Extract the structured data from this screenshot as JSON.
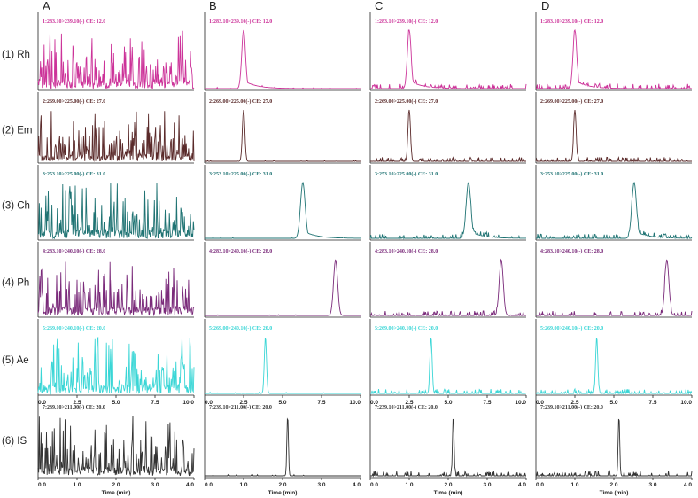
{
  "chart_data": {
    "type": "line",
    "title": "",
    "columns": [
      "A",
      "B",
      "C",
      "D"
    ],
    "xlabel": "Time (min)",
    "rows": [
      {
        "label": "(1) Rh",
        "trace": "1:283.10>239.10(-) CE: 12.0",
        "color": "#cc3399",
        "xlim": [
          0,
          10
        ],
        "xticks": [],
        "peak_rt": 2.5,
        "peak_width": 0.12,
        "tail": true
      },
      {
        "label": "(2) Em",
        "trace": "2:269.00>225.00(-) CE: 27.0",
        "color": "#5a2a2a",
        "xlim": [
          0,
          10
        ],
        "xticks": [],
        "peak_rt": 2.5,
        "peak_width": 0.08,
        "tail": false
      },
      {
        "label": "(3) Ch",
        "trace": "3:253.10>225.00(-) CE: 31.0",
        "color": "#1f7373",
        "xlim": [
          0,
          10
        ],
        "xticks": [],
        "peak_rt": 6.3,
        "peak_width": 0.15,
        "tail": true
      },
      {
        "label": "(4) Ph",
        "trace": "4:283.10>240.10(-) CE: 28.0",
        "color": "#7a2a7a",
        "xlim": [
          0,
          10
        ],
        "xticks": [],
        "peak_rt": 8.4,
        "peak_width": 0.13,
        "tail": false
      },
      {
        "label": "(5) Ae",
        "trace": "5:269.00>240.10(-) CE: 20.0",
        "color": "#3ad6d6",
        "xlim": [
          0,
          10
        ],
        "xticks": [
          0.0,
          2.5,
          5.0,
          7.5,
          10.0
        ],
        "xtick_labels": [
          "0.0",
          "2.5",
          "5.0",
          "7.5",
          "10.0"
        ],
        "peak_rt": 3.9,
        "peak_width": 0.07,
        "tail": false
      },
      {
        "label": "(6) IS",
        "trace": "7:239.10>211.00(-) CE: 20.0",
        "color": "#333333",
        "xlim": [
          0,
          4
        ],
        "xticks": [
          0.0,
          1.0,
          2.0,
          3.0,
          4.0
        ],
        "xtick_labels": [
          "0.0",
          "1.0",
          "2.0",
          "3.0",
          "4.0"
        ],
        "peak_rt": 2.13,
        "peak_width": 0.02,
        "tail": false
      }
    ],
    "column_types": [
      "blank",
      "standard",
      "sample",
      "sample"
    ]
  }
}
